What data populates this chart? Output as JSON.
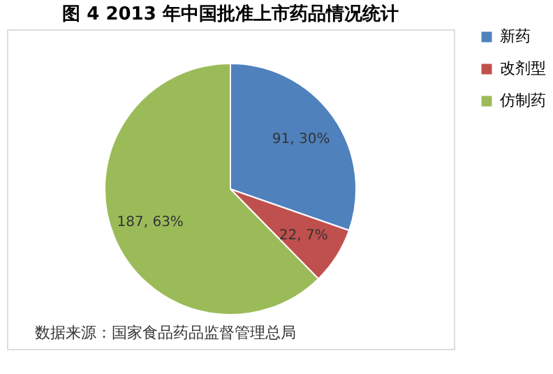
{
  "chart_data": {
    "type": "pie",
    "title": "图 4   2013 年中国批准上市药品情况统计",
    "categories": [
      "新药",
      "改剂型",
      "仿制药"
    ],
    "values": [
      91,
      22,
      187
    ],
    "colors": [
      "#4f81bd",
      "#c0504d",
      "#9bbb59"
    ],
    "value_labels": [
      "91, 30%",
      "22, 7%",
      "187, 63%"
    ],
    "legend": "right",
    "annotations": [
      "数据来源：国家食品药品监督管理总局"
    ]
  }
}
